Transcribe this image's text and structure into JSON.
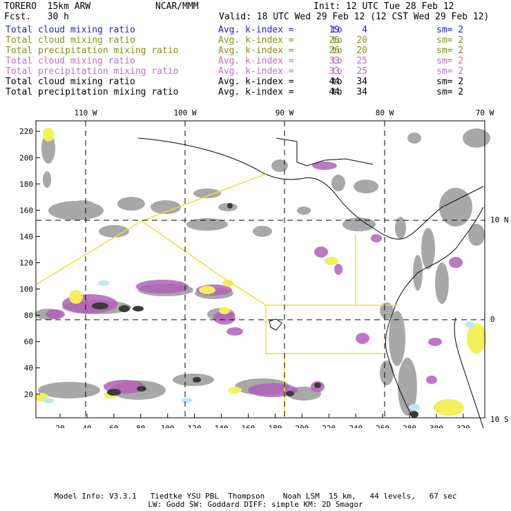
{
  "header": {
    "model": "TORERO  15km ARW",
    "org": "NCAR/MMM",
    "init": "Init: 12 UTC Tue 28 Feb 12",
    "fcst": "Fcst.   30 h",
    "valid": "Valid: 18 UTC Wed 29 Feb 12 (12 CST Wed 29 Feb 12)"
  },
  "legend_rows": [
    {
      "field": "Total cloud mixing ratio",
      "avg": "Avg. k-index =",
      "hi": "19",
      "to": "to",
      "lo": "4",
      "sm": "sm= 2",
      "color": "#1f1fcf"
    },
    {
      "field": "Total cloud mixing ratio",
      "avg": "Avg. k-index =",
      "hi": "26",
      "to": "to",
      "lo": "20",
      "sm": "sm= 2",
      "color": "#8c8c1a"
    },
    {
      "field": "Total precipitation mixing ratio",
      "avg": "Avg. k-index =",
      "hi": "26",
      "to": "to",
      "lo": "20",
      "sm": "sm= 2",
      "color": "#8c8c1a"
    },
    {
      "field": "Total cloud mixing ratio",
      "avg": "Avg. k-index =",
      "hi": "33",
      "to": "to",
      "lo": "25",
      "sm": "sm= 2",
      "color": "#c070c0"
    },
    {
      "field": "Total precipitation mixing ratio",
      "avg": "Avg. k-index =",
      "hi": "33",
      "to": "to",
      "lo": "25",
      "sm": "sm= 2",
      "color": "#c070c0"
    },
    {
      "field": "Total cloud mixing ratio",
      "avg": "Avg. k-index =",
      "hi": "44",
      "to": "to",
      "lo": "34",
      "sm": "sm= 2",
      "color": "#000000"
    },
    {
      "field": "Total precipitation mixing ratio",
      "avg": "Avg. k-index =",
      "hi": "44",
      "to": "to",
      "lo": "34",
      "sm": "sm= 2",
      "color": "#000000"
    }
  ],
  "map": {
    "lon_labels": [
      "110 W",
      "100 W",
      "90 W",
      "80 W",
      "70 W"
    ],
    "lat_labels": [
      "10 N",
      "0",
      "10 S"
    ],
    "x_ticks": [
      "20",
      "40",
      "60",
      "80",
      "100",
      "120",
      "140",
      "160",
      "180",
      "200",
      "220",
      "240",
      "260",
      "280",
      "300",
      "320"
    ],
    "y_ticks": [
      "20",
      "40",
      "60",
      "80",
      "100",
      "120",
      "140",
      "160",
      "180",
      "200",
      "220"
    ],
    "colors": {
      "cloud_gray": "#a8a8a8",
      "cloud_dark": "#3a3a3a",
      "magenta": "#b060b8",
      "yellow": "#f4f05a",
      "lightblue": "#bfe8f4",
      "domain_outline": "#f0e030"
    }
  },
  "footer": {
    "line1": "Model Info: V3.3.1   Tiedtke YSU PBL  Thompson    Noah LSM  15 km,   44 levels,   67 sec",
    "line2": "LW: Godd SW: Goddard DIFF: simple KM: 2D Smagor"
  }
}
